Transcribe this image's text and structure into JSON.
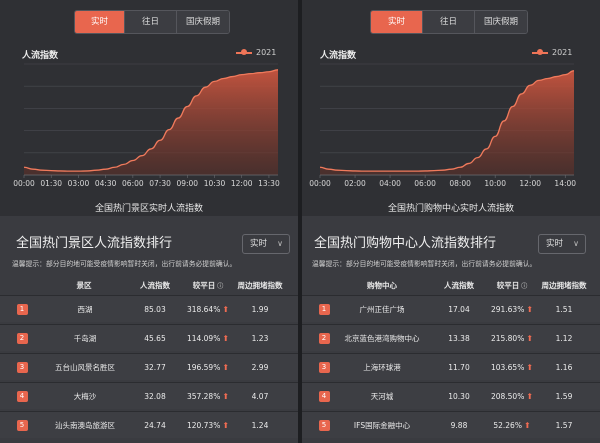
{
  "tabs": [
    "实时",
    "往日",
    "国庆假期"
  ],
  "accent_color": "#e8664e",
  "left": {
    "chart_title": "人流指数",
    "legend": "2021",
    "caption": "全国热门景区实时人流指数",
    "chart_data": {
      "type": "area",
      "series": [
        {
          "name": "2021",
          "x": [
            "00:00",
            "00:30",
            "01:00",
            "01:30",
            "02:00",
            "02:30",
            "03:00",
            "03:30",
            "04:00",
            "04:30",
            "05:00",
            "05:30",
            "06:00",
            "06:30",
            "07:00",
            "07:30",
            "08:00",
            "08:30",
            "09:00",
            "09:30",
            "10:00",
            "10:30",
            "11:00",
            "11:30",
            "12:00",
            "12:30",
            "13:00",
            "13:30",
            "14:00"
          ],
          "values": [
            8,
            6,
            5,
            4.5,
            4.2,
            4,
            4,
            4.2,
            5,
            6,
            8,
            11,
            15,
            20,
            27,
            36,
            47,
            59,
            71,
            82,
            91,
            97,
            100,
            102,
            104,
            105,
            106,
            107,
            109
          ]
        }
      ],
      "x_tick_labels": [
        "00:00",
        "01:30",
        "03:00",
        "04:30",
        "06:00",
        "07:30",
        "09:00",
        "10:30",
        "12:00",
        "13:30"
      ],
      "ylim": [
        0,
        115
      ],
      "grid": true,
      "legend_position": "top-right"
    },
    "rank_title": "全国热门景区人流指数排行",
    "select_value": "实时",
    "notice": "温馨提示：部分目的地可能受疫情影响暂时关闭，出行前请务必提前确认。",
    "headers": [
      "景区",
      "人流指数",
      "较平日",
      "周边拥堵指数"
    ],
    "rows": [
      {
        "rank": "1",
        "name": "西湖",
        "index": "85.03",
        "vs": "318.64%",
        "congestion": "1.99"
      },
      {
        "rank": "2",
        "name": "千岛湖",
        "index": "45.65",
        "vs": "114.09%",
        "congestion": "1.23"
      },
      {
        "rank": "3",
        "name": "五台山风景名胜区",
        "index": "32.77",
        "vs": "196.59%",
        "congestion": "2.99"
      },
      {
        "rank": "4",
        "name": "大梅沙",
        "index": "32.08",
        "vs": "357.28%",
        "congestion": "4.07"
      },
      {
        "rank": "5",
        "name": "汕头南澳岛旅游区",
        "index": "24.74",
        "vs": "120.73%",
        "congestion": "1.24"
      }
    ]
  },
  "right": {
    "chart_title": "人流指数",
    "legend": "2021",
    "caption": "全国热门购物中心实时人流指数",
    "chart_data": {
      "type": "area",
      "series": [
        {
          "name": "2021",
          "x": [
            "00:00",
            "00:30",
            "01:00",
            "01:30",
            "02:00",
            "02:30",
            "03:00",
            "03:30",
            "04:00",
            "04:30",
            "05:00",
            "05:30",
            "06:00",
            "06:30",
            "07:00",
            "07:30",
            "08:00",
            "08:30",
            "09:00",
            "09:30",
            "10:00",
            "10:30",
            "11:00",
            "11:30",
            "12:00",
            "12:30",
            "13:00",
            "13:30",
            "14:00",
            "14:30"
          ],
          "values": [
            8,
            6,
            5,
            4.5,
            4.2,
            4,
            4,
            4,
            4,
            4,
            4,
            4,
            4.2,
            4.5,
            5,
            6,
            8,
            12,
            18,
            27,
            40,
            56,
            71,
            84,
            93,
            98,
            100,
            102,
            104,
            108
          ]
        }
      ],
      "x_tick_labels": [
        "00:00",
        "02:00",
        "04:00",
        "06:00",
        "08:00",
        "10:00",
        "12:00",
        "14:00"
      ],
      "ylim": [
        0,
        115
      ],
      "grid": true,
      "legend_position": "top-right"
    },
    "rank_title": "全国热门购物中心人流指数排行",
    "select_value": "实时",
    "notice": "温馨提示：部分目的地可能受疫情影响暂时关闭，出行前请务必提前确认。",
    "headers": [
      "购物中心",
      "人流指数",
      "较平日",
      "周边拥堵指数"
    ],
    "rows": [
      {
        "rank": "1",
        "name": "广州正佳广场",
        "index": "17.04",
        "vs": "291.63%",
        "congestion": "1.51"
      },
      {
        "rank": "2",
        "name": "北京蓝色港湾购物中心",
        "index": "13.38",
        "vs": "215.80%",
        "congestion": "1.12"
      },
      {
        "rank": "3",
        "name": "上海环球港",
        "index": "11.70",
        "vs": "103.65%",
        "congestion": "1.16"
      },
      {
        "rank": "4",
        "name": "天河城",
        "index": "10.30",
        "vs": "208.50%",
        "congestion": "1.59"
      },
      {
        "rank": "5",
        "name": "IFS国际金融中心",
        "index": "9.88",
        "vs": "52.26%",
        "congestion": "1.57"
      }
    ]
  }
}
